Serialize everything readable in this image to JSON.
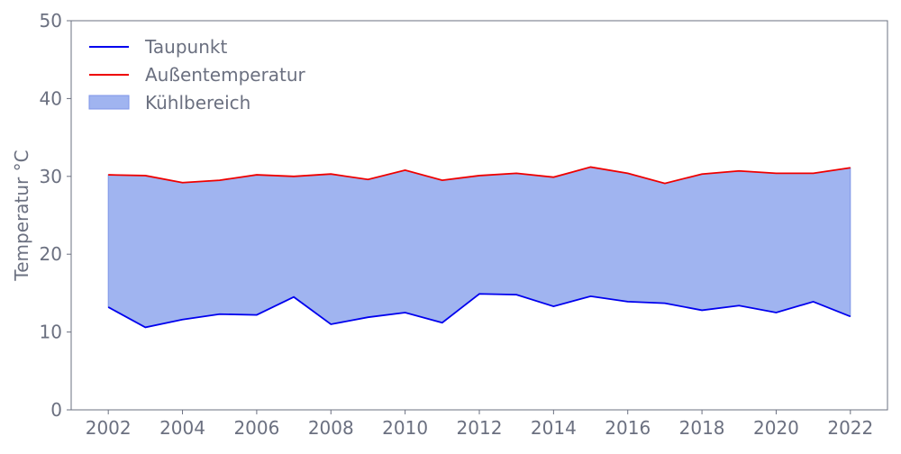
{
  "chart_data": {
    "type": "area",
    "title": "",
    "xlabel": "",
    "ylabel": "Temperatur °C",
    "xlim": [
      2001,
      2023
    ],
    "ylim": [
      0,
      50
    ],
    "xticks": [
      2002,
      2004,
      2006,
      2008,
      2010,
      2012,
      2014,
      2016,
      2018,
      2020,
      2022
    ],
    "yticks": [
      0,
      10,
      20,
      30,
      40,
      50
    ],
    "grid": false,
    "legend_position": "top-left",
    "x": [
      2002,
      2003,
      2004,
      2005,
      2006,
      2007,
      2008,
      2009,
      2010,
      2011,
      2012,
      2013,
      2014,
      2015,
      2016,
      2017,
      2018,
      2019,
      2020,
      2021,
      2022
    ],
    "series": [
      {
        "name": "Taupunkt",
        "color": "#0000ee",
        "values": [
          13.2,
          10.6,
          11.6,
          12.3,
          12.2,
          14.5,
          11.0,
          11.9,
          12.5,
          11.2,
          14.9,
          14.8,
          13.3,
          14.6,
          13.9,
          13.7,
          12.8,
          13.4,
          12.5,
          13.9,
          12.0
        ]
      },
      {
        "name": "Außentemperatur",
        "color": "#ee0000",
        "values": [
          30.2,
          30.1,
          29.2,
          29.5,
          30.2,
          30.0,
          30.3,
          29.6,
          30.8,
          29.5,
          30.1,
          30.4,
          29.9,
          31.2,
          30.4,
          29.1,
          30.3,
          30.7,
          30.4,
          30.4,
          31.1
        ]
      }
    ],
    "fill_between": {
      "name": "Kühlbereich",
      "color": "#a0b4f0",
      "edge_color": "#7f96e8",
      "lower": "Taupunkt",
      "upper": "Außentemperatur"
    }
  }
}
